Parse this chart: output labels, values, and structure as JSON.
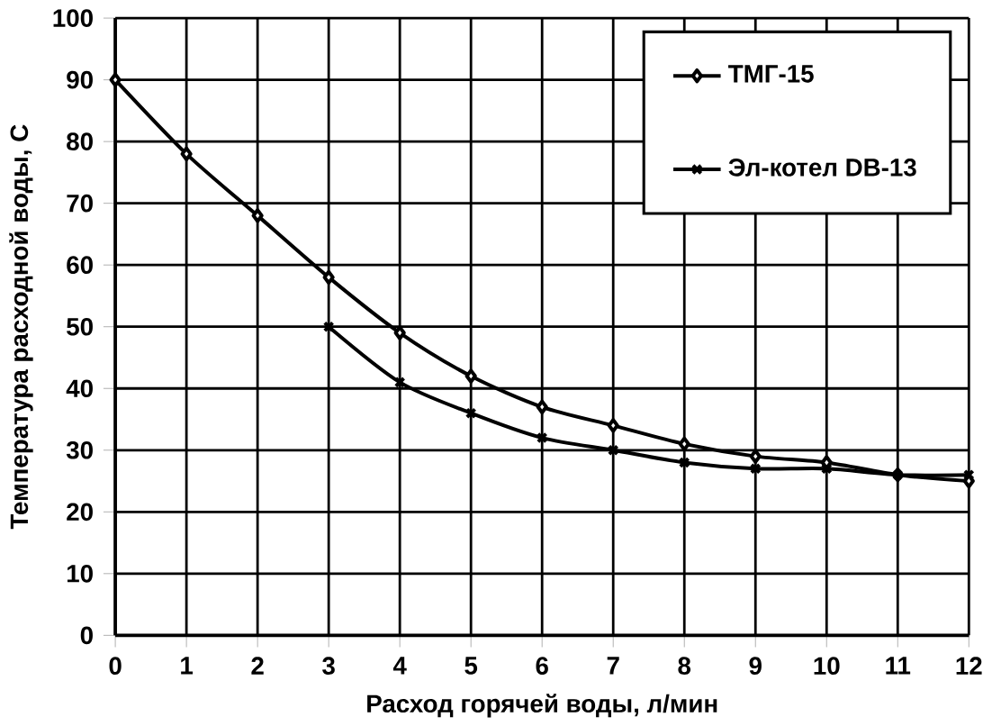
{
  "chart_data": {
    "type": "line",
    "xlabel": "Расход горячей воды, л/мин",
    "ylabel": "Температура расходной воды, С",
    "xlim": [
      0,
      12
    ],
    "ylim": [
      0,
      100
    ],
    "xticks": [
      0,
      1,
      2,
      3,
      4,
      5,
      6,
      7,
      8,
      9,
      10,
      11,
      12
    ],
    "yticks": [
      0,
      10,
      20,
      30,
      40,
      50,
      60,
      70,
      80,
      90,
      100
    ],
    "grid": true,
    "legend": "top right",
    "series": [
      {
        "name": "ТМГ-15",
        "color": "#000000",
        "marker": "diamond",
        "x": [
          0,
          1,
          2,
          3,
          4,
          5,
          6,
          7,
          8,
          9,
          10,
          11,
          12
        ],
        "values": [
          90,
          78,
          68,
          58,
          49,
          42,
          37,
          34,
          31,
          29,
          28,
          26,
          25
        ]
      },
      {
        "name": "Эл-котел DB-13",
        "color": "#000000",
        "marker": "cross",
        "x": [
          3,
          4,
          5,
          6,
          7,
          8,
          9,
          10,
          11,
          12
        ],
        "values": [
          50,
          41,
          36,
          32,
          30,
          28,
          27,
          27,
          26,
          26
        ]
      }
    ]
  }
}
